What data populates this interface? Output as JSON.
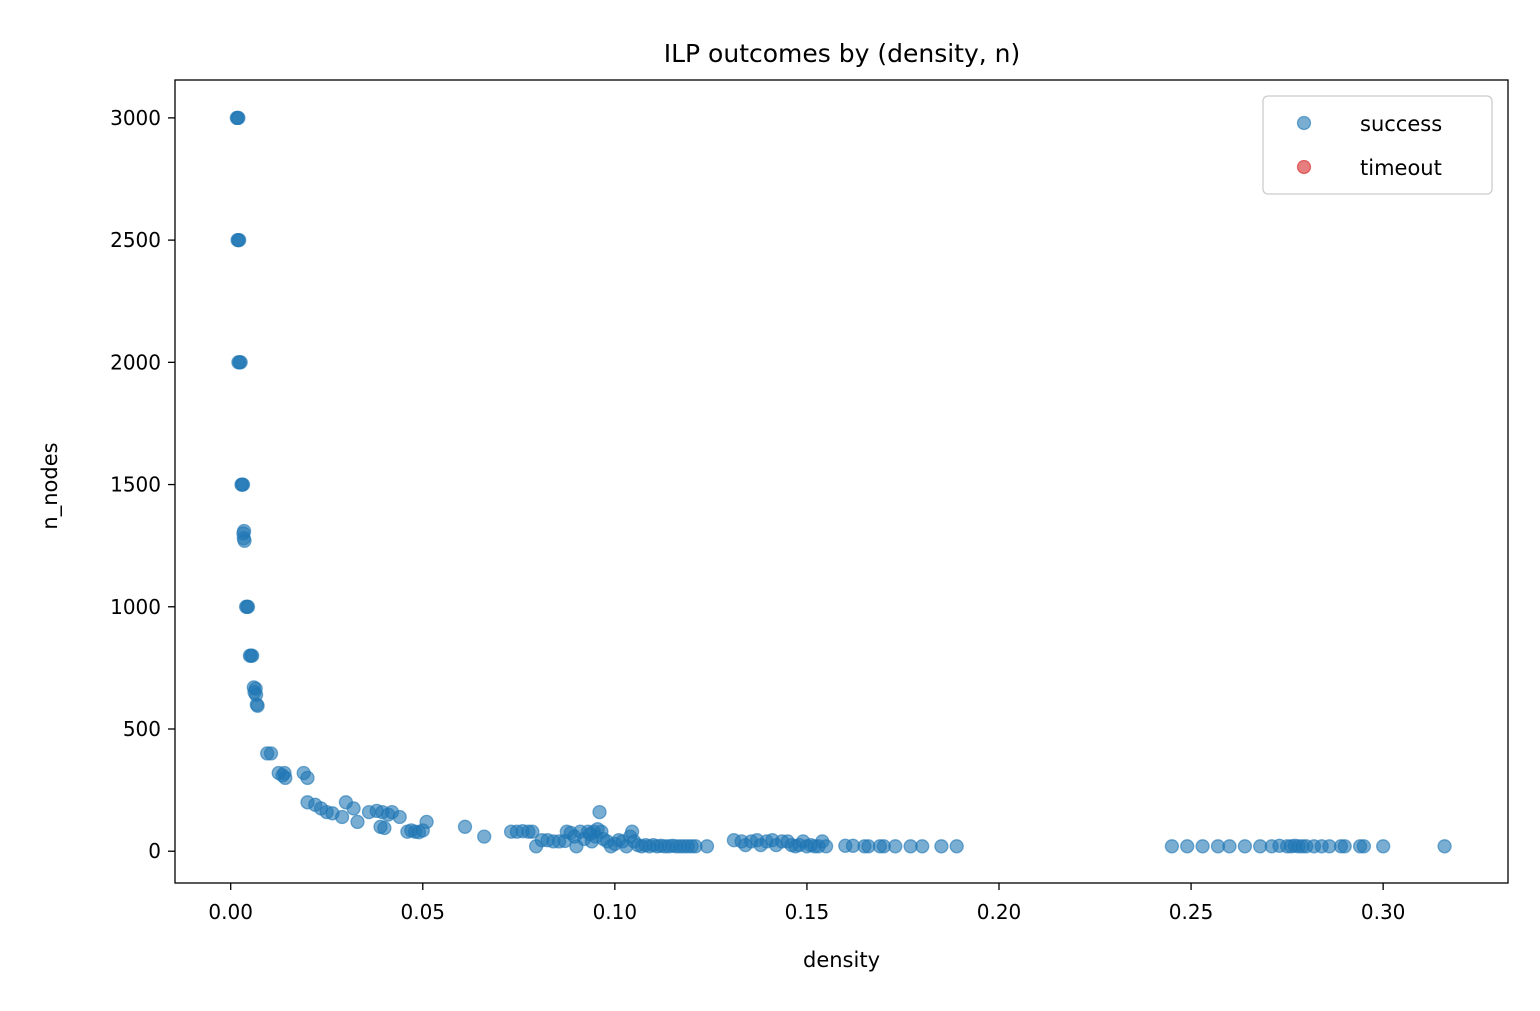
{
  "chart_data": {
    "type": "scatter",
    "title": "ILP outcomes by (density, n)",
    "xlabel": "density",
    "ylabel": "n_nodes",
    "xlim": [
      -0.0145,
      0.3325
    ],
    "ylim": [
      -130,
      3155
    ],
    "xticks": [
      0.0,
      0.05,
      0.1,
      0.15,
      0.2,
      0.25,
      0.3
    ],
    "xtick_labels": [
      "0.00",
      "0.05",
      "0.10",
      "0.15",
      "0.20",
      "0.25",
      "0.30"
    ],
    "yticks": [
      0,
      500,
      1000,
      1500,
      2000,
      2500,
      3000
    ],
    "ytick_labels": [
      "0",
      "500",
      "1000",
      "1500",
      "2000",
      "2500",
      "3000"
    ],
    "grid": false,
    "legend_position": "top-right",
    "series": [
      {
        "name": "success",
        "color": "#1f77b4",
        "points": [
          [
            0.0016,
            3000
          ],
          [
            0.0018,
            3000
          ],
          [
            0.002,
            3000
          ],
          [
            0.0018,
            2500
          ],
          [
            0.002,
            2500
          ],
          [
            0.0022,
            2500
          ],
          [
            0.002,
            2000
          ],
          [
            0.0023,
            2000
          ],
          [
            0.0026,
            2000
          ],
          [
            0.0028,
            1500
          ],
          [
            0.003,
            1500
          ],
          [
            0.0032,
            1500
          ],
          [
            0.0033,
            1300
          ],
          [
            0.0035,
            1310
          ],
          [
            0.0034,
            1280
          ],
          [
            0.0036,
            1270
          ],
          [
            0.004,
            1000
          ],
          [
            0.0043,
            1000
          ],
          [
            0.0045,
            1000
          ],
          [
            0.005,
            800
          ],
          [
            0.0053,
            800
          ],
          [
            0.0056,
            800
          ],
          [
            0.006,
            670
          ],
          [
            0.0065,
            665
          ],
          [
            0.0062,
            650
          ],
          [
            0.0066,
            640
          ],
          [
            0.0068,
            600
          ],
          [
            0.007,
            595
          ],
          [
            0.0095,
            400
          ],
          [
            0.0105,
            400
          ],
          [
            0.0125,
            320
          ],
          [
            0.014,
            320
          ],
          [
            0.0135,
            310
          ],
          [
            0.0142,
            300
          ],
          [
            0.019,
            320
          ],
          [
            0.02,
            300
          ],
          [
            0.02,
            200
          ],
          [
            0.022,
            190
          ],
          [
            0.0235,
            175
          ],
          [
            0.025,
            160
          ],
          [
            0.0265,
            155
          ],
          [
            0.03,
            200
          ],
          [
            0.029,
            140
          ],
          [
            0.032,
            175
          ],
          [
            0.033,
            120
          ],
          [
            0.036,
            160
          ],
          [
            0.038,
            165
          ],
          [
            0.0395,
            160
          ],
          [
            0.041,
            150
          ],
          [
            0.042,
            160
          ],
          [
            0.044,
            140
          ],
          [
            0.039,
            100
          ],
          [
            0.04,
            95
          ],
          [
            0.046,
            80
          ],
          [
            0.047,
            85
          ],
          [
            0.048,
            80
          ],
          [
            0.049,
            78
          ],
          [
            0.05,
            85
          ],
          [
            0.051,
            120
          ],
          [
            0.061,
            100
          ],
          [
            0.066,
            60
          ],
          [
            0.073,
            80
          ],
          [
            0.0745,
            80
          ],
          [
            0.076,
            82
          ],
          [
            0.0775,
            80
          ],
          [
            0.0785,
            80
          ],
          [
            0.0795,
            20
          ],
          [
            0.081,
            45
          ],
          [
            0.0825,
            45
          ],
          [
            0.084,
            40
          ],
          [
            0.0855,
            40
          ],
          [
            0.087,
            42
          ],
          [
            0.0875,
            80
          ],
          [
            0.0885,
            75
          ],
          [
            0.0895,
            60
          ],
          [
            0.09,
            20
          ],
          [
            0.091,
            80
          ],
          [
            0.092,
            50
          ],
          [
            0.093,
            80
          ],
          [
            0.0935,
            70
          ],
          [
            0.094,
            40
          ],
          [
            0.0945,
            80
          ],
          [
            0.095,
            60
          ],
          [
            0.0955,
            90
          ],
          [
            0.096,
            160
          ],
          [
            0.0965,
            80
          ],
          [
            0.097,
            50
          ],
          [
            0.098,
            40
          ],
          [
            0.099,
            20
          ],
          [
            0.1,
            30
          ],
          [
            0.101,
            45
          ],
          [
            0.102,
            40
          ],
          [
            0.103,
            20
          ],
          [
            0.104,
            60
          ],
          [
            0.1045,
            80
          ],
          [
            0.105,
            40
          ],
          [
            0.106,
            25
          ],
          [
            0.107,
            20
          ],
          [
            0.108,
            25
          ],
          [
            0.109,
            20
          ],
          [
            0.11,
            25
          ],
          [
            0.111,
            20
          ],
          [
            0.112,
            22
          ],
          [
            0.113,
            20
          ],
          [
            0.114,
            20
          ],
          [
            0.115,
            22
          ],
          [
            0.116,
            20
          ],
          [
            0.117,
            20
          ],
          [
            0.118,
            20
          ],
          [
            0.119,
            20
          ],
          [
            0.12,
            20
          ],
          [
            0.121,
            20
          ],
          [
            0.124,
            20
          ],
          [
            0.131,
            45
          ],
          [
            0.133,
            40
          ],
          [
            0.134,
            25
          ],
          [
            0.1355,
            40
          ],
          [
            0.137,
            45
          ],
          [
            0.138,
            25
          ],
          [
            0.1395,
            40
          ],
          [
            0.141,
            45
          ],
          [
            0.142,
            25
          ],
          [
            0.1435,
            40
          ],
          [
            0.145,
            40
          ],
          [
            0.146,
            25
          ],
          [
            0.147,
            20
          ],
          [
            0.148,
            25
          ],
          [
            0.149,
            40
          ],
          [
            0.15,
            20
          ],
          [
            0.151,
            25
          ],
          [
            0.152,
            20
          ],
          [
            0.153,
            20
          ],
          [
            0.154,
            40
          ],
          [
            0.155,
            20
          ],
          [
            0.16,
            22
          ],
          [
            0.162,
            22
          ],
          [
            0.165,
            20
          ],
          [
            0.166,
            20
          ],
          [
            0.169,
            20
          ],
          [
            0.17,
            20
          ],
          [
            0.173,
            20
          ],
          [
            0.177,
            20
          ],
          [
            0.18,
            20
          ],
          [
            0.185,
            20
          ],
          [
            0.189,
            20
          ],
          [
            0.245,
            20
          ],
          [
            0.249,
            20
          ],
          [
            0.253,
            20
          ],
          [
            0.257,
            20
          ],
          [
            0.26,
            20
          ],
          [
            0.264,
            20
          ],
          [
            0.268,
            20
          ],
          [
            0.271,
            20
          ],
          [
            0.273,
            22
          ],
          [
            0.275,
            20
          ],
          [
            0.276,
            20
          ],
          [
            0.277,
            22
          ],
          [
            0.278,
            20
          ],
          [
            0.279,
            20
          ],
          [
            0.28,
            20
          ],
          [
            0.282,
            20
          ],
          [
            0.284,
            20
          ],
          [
            0.286,
            20
          ],
          [
            0.289,
            20
          ],
          [
            0.29,
            20
          ],
          [
            0.294,
            20
          ],
          [
            0.295,
            20
          ],
          [
            0.3,
            20
          ],
          [
            0.316,
            20
          ]
        ]
      },
      {
        "name": "timeout",
        "color": "#d62728",
        "points": []
      }
    ]
  }
}
